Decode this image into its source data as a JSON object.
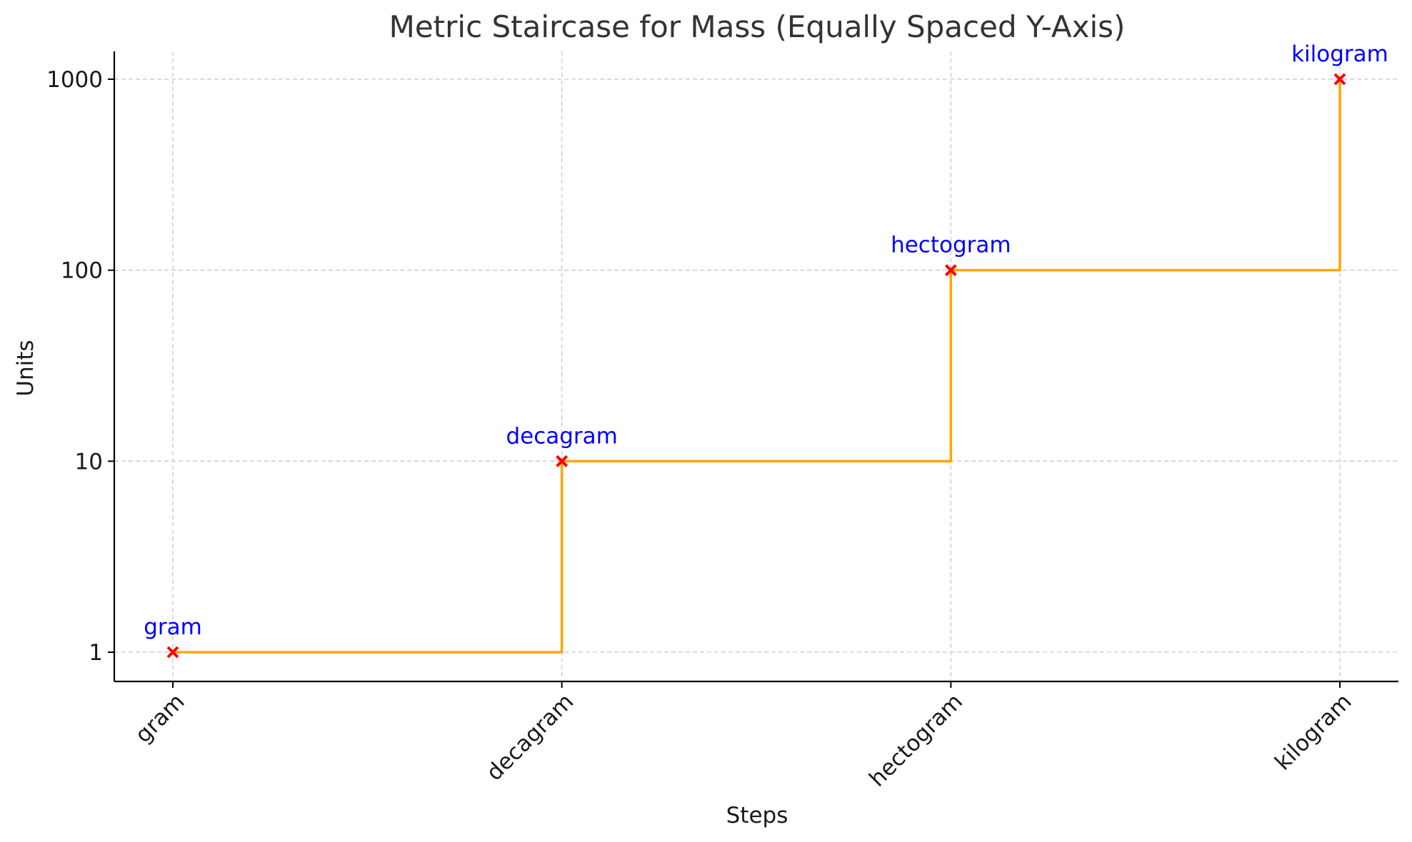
{
  "chart_data": {
    "type": "line",
    "title": "Metric Staircase for Mass (Equally Spaced Y-Axis)",
    "xlabel": "Steps",
    "ylabel": "Units",
    "categories": [
      "gram",
      "decagram",
      "hectogram",
      "kilogram"
    ],
    "values": [
      1,
      10,
      100,
      1000
    ],
    "point_labels": [
      "gram",
      "decagram",
      "hectogram",
      "kilogram"
    ],
    "y_scale": "log",
    "y_ticks": [
      1,
      10,
      100,
      1000
    ],
    "y_tick_labels": [
      "1",
      "10",
      "100",
      "1000"
    ],
    "ylim": [
      0.7,
      1500
    ],
    "step_style": "post",
    "grid": true,
    "line_color": "#ffa500",
    "marker": "x",
    "marker_color": "#ff0000",
    "label_color": "#0000ff"
  }
}
